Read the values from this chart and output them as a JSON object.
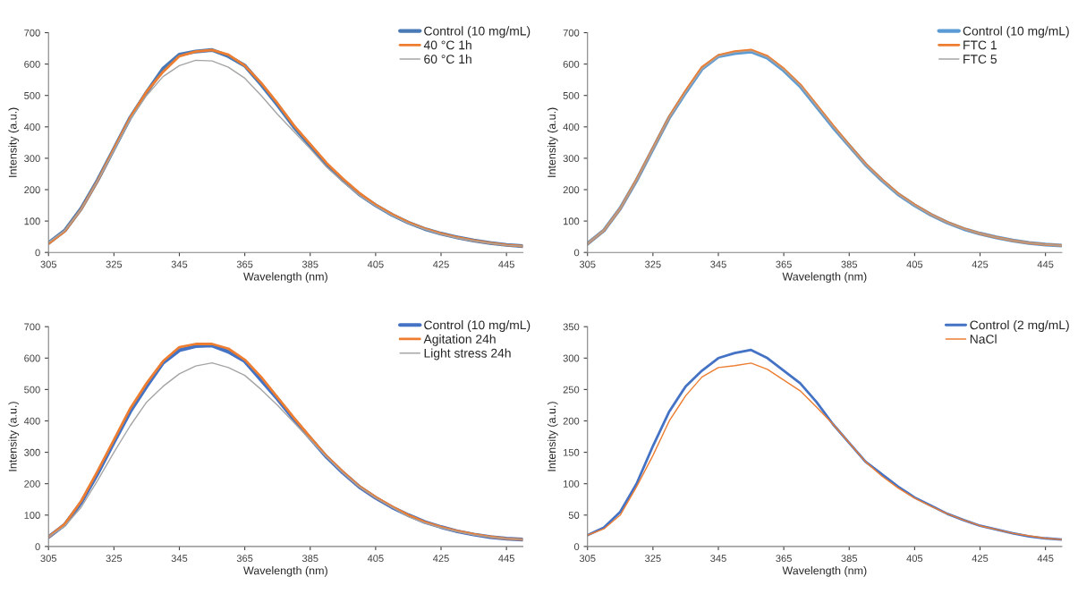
{
  "chart_data": [
    {
      "type": "line",
      "xlabel": "Wavelength (nm)",
      "ylabel": "Intensity (a.u.)",
      "xlim": [
        305,
        450
      ],
      "xticks": [
        305,
        325,
        345,
        365,
        385,
        405,
        425,
        445
      ],
      "ylim": [
        0,
        700
      ],
      "yticks": [
        0,
        100,
        200,
        300,
        400,
        500,
        600,
        700
      ],
      "legend": "top right",
      "grid": false,
      "x": [
        305,
        310,
        315,
        320,
        325,
        330,
        335,
        340,
        345,
        350,
        355,
        360,
        365,
        370,
        375,
        380,
        385,
        390,
        395,
        400,
        405,
        410,
        415,
        420,
        425,
        430,
        435,
        440,
        445,
        450
      ],
      "series": [
        {
          "name": "Control (10 mg/mL)",
          "color": "#4a7ab5",
          "values": [
            30,
            70,
            140,
            230,
            330,
            430,
            510,
            585,
            630,
            640,
            645,
            625,
            595,
            535,
            470,
            400,
            340,
            280,
            230,
            185,
            150,
            120,
            95,
            75,
            60,
            48,
            38,
            30,
            24,
            20
          ]
        },
        {
          "name": "40 °C 1h",
          "color": "#ed7d31",
          "values": [
            28,
            68,
            138,
            228,
            330,
            430,
            512,
            575,
            625,
            640,
            645,
            630,
            595,
            540,
            475,
            405,
            345,
            285,
            235,
            190,
            152,
            122,
            96,
            76,
            60,
            48,
            38,
            30,
            24,
            20
          ]
        },
        {
          "name": "60 °C 1h",
          "color": "#a5a5a5",
          "values": [
            32,
            70,
            138,
            228,
            325,
            425,
            500,
            560,
            595,
            612,
            610,
            590,
            555,
            500,
            440,
            385,
            330,
            272,
            225,
            182,
            148,
            118,
            93,
            74,
            58,
            46,
            37,
            29,
            23,
            20
          ]
        }
      ]
    },
    {
      "type": "line",
      "xlabel": "Wavelength (nm)",
      "ylabel": "Intensity (a.u.)",
      "xlim": [
        305,
        450
      ],
      "xticks": [
        305,
        325,
        345,
        365,
        385,
        405,
        425,
        445
      ],
      "ylim": [
        0,
        700
      ],
      "yticks": [
        0,
        100,
        200,
        300,
        400,
        500,
        600,
        700
      ],
      "legend": "top right",
      "grid": false,
      "x": [
        305,
        310,
        315,
        320,
        325,
        330,
        335,
        340,
        345,
        350,
        355,
        360,
        365,
        370,
        375,
        380,
        385,
        390,
        395,
        400,
        405,
        410,
        415,
        420,
        425,
        430,
        435,
        440,
        445,
        450
      ],
      "series": [
        {
          "name": "Control (10 mg/mL)",
          "color": "#5b9bd5",
          "values": [
            28,
            70,
            140,
            230,
            330,
            430,
            510,
            585,
            625,
            635,
            640,
            620,
            580,
            530,
            465,
            400,
            340,
            280,
            230,
            185,
            150,
            120,
            95,
            75,
            60,
            48,
            38,
            30,
            25,
            22
          ]
        },
        {
          "name": "FTC 1",
          "color": "#ed7d31",
          "values": [
            28,
            70,
            140,
            232,
            332,
            432,
            515,
            590,
            628,
            640,
            645,
            625,
            585,
            535,
            470,
            405,
            342,
            282,
            232,
            187,
            152,
            121,
            96,
            76,
            60,
            48,
            38,
            30,
            25,
            22
          ]
        },
        {
          "name": "FTC 5",
          "color": "#a5a5a5",
          "values": [
            28,
            70,
            140,
            230,
            330,
            430,
            510,
            585,
            625,
            637,
            642,
            622,
            582,
            532,
            467,
            402,
            340,
            280,
            230,
            185,
            150,
            120,
            95,
            75,
            60,
            48,
            38,
            30,
            25,
            22
          ]
        }
      ]
    },
    {
      "type": "line",
      "xlabel": "Wavelength (nm)",
      "ylabel": "Intensity (a.u.)",
      "xlim": [
        305,
        450
      ],
      "xticks": [
        305,
        325,
        345,
        365,
        385,
        405,
        425,
        445
      ],
      "ylim": [
        0,
        700
      ],
      "yticks": [
        0,
        100,
        200,
        300,
        400,
        500,
        600,
        700
      ],
      "legend": "top right",
      "grid": false,
      "x": [
        305,
        310,
        315,
        320,
        325,
        330,
        335,
        340,
        345,
        350,
        355,
        360,
        365,
        370,
        375,
        380,
        385,
        390,
        395,
        400,
        405,
        410,
        415,
        420,
        425,
        430,
        435,
        440,
        445,
        450
      ],
      "series": [
        {
          "name": "Control (10 mg/mL)",
          "color": "#4472c4",
          "values": [
            30,
            70,
            140,
            232,
            332,
            430,
            510,
            585,
            625,
            638,
            640,
            620,
            590,
            530,
            470,
            405,
            345,
            285,
            235,
            190,
            155,
            125,
            100,
            78,
            62,
            48,
            38,
            30,
            25,
            22
          ]
        },
        {
          "name": "Agitation 24h",
          "color": "#ed7d31",
          "values": [
            30,
            72,
            145,
            240,
            340,
            440,
            520,
            590,
            635,
            645,
            645,
            630,
            595,
            540,
            475,
            410,
            348,
            288,
            238,
            192,
            157,
            127,
            100,
            78,
            62,
            49,
            39,
            31,
            25,
            22
          ]
        },
        {
          "name": "Light stress 24h",
          "color": "#a5a5a5",
          "values": [
            30,
            65,
            125,
            210,
            300,
            385,
            460,
            510,
            550,
            575,
            585,
            570,
            545,
            500,
            450,
            395,
            340,
            285,
            235,
            190,
            155,
            125,
            95,
            75,
            60,
            47,
            37,
            30,
            25,
            22
          ]
        }
      ]
    },
    {
      "type": "line",
      "xlabel": "Wavelength (nm)",
      "ylabel": "Intensity (a.u.)",
      "xlim": [
        305,
        450
      ],
      "xticks": [
        305,
        325,
        345,
        365,
        385,
        405,
        425,
        445
      ],
      "ylim": [
        0,
        350
      ],
      "yticks": [
        0,
        50,
        100,
        150,
        200,
        250,
        300,
        350
      ],
      "legend": "top right",
      "grid": false,
      "x": [
        305,
        310,
        315,
        320,
        325,
        330,
        335,
        340,
        345,
        350,
        355,
        360,
        365,
        370,
        375,
        380,
        385,
        390,
        395,
        400,
        405,
        410,
        415,
        420,
        425,
        430,
        435,
        440,
        445,
        450
      ],
      "series": [
        {
          "name": "Control (2 mg/mL)",
          "color": "#4472c4",
          "values": [
            18,
            30,
            55,
            100,
            160,
            215,
            255,
            280,
            300,
            308,
            313,
            300,
            280,
            260,
            230,
            195,
            165,
            135,
            115,
            95,
            78,
            65,
            52,
            42,
            33,
            27,
            21,
            16,
            13,
            11
          ]
        },
        {
          "name": "NaCl",
          "color": "#ed7d31",
          "values": [
            18,
            28,
            50,
            95,
            145,
            200,
            240,
            270,
            285,
            288,
            292,
            282,
            265,
            248,
            222,
            195,
            165,
            135,
            112,
            93,
            77,
            64,
            52,
            42,
            33,
            27,
            21,
            17,
            13,
            11
          ]
        }
      ]
    }
  ]
}
